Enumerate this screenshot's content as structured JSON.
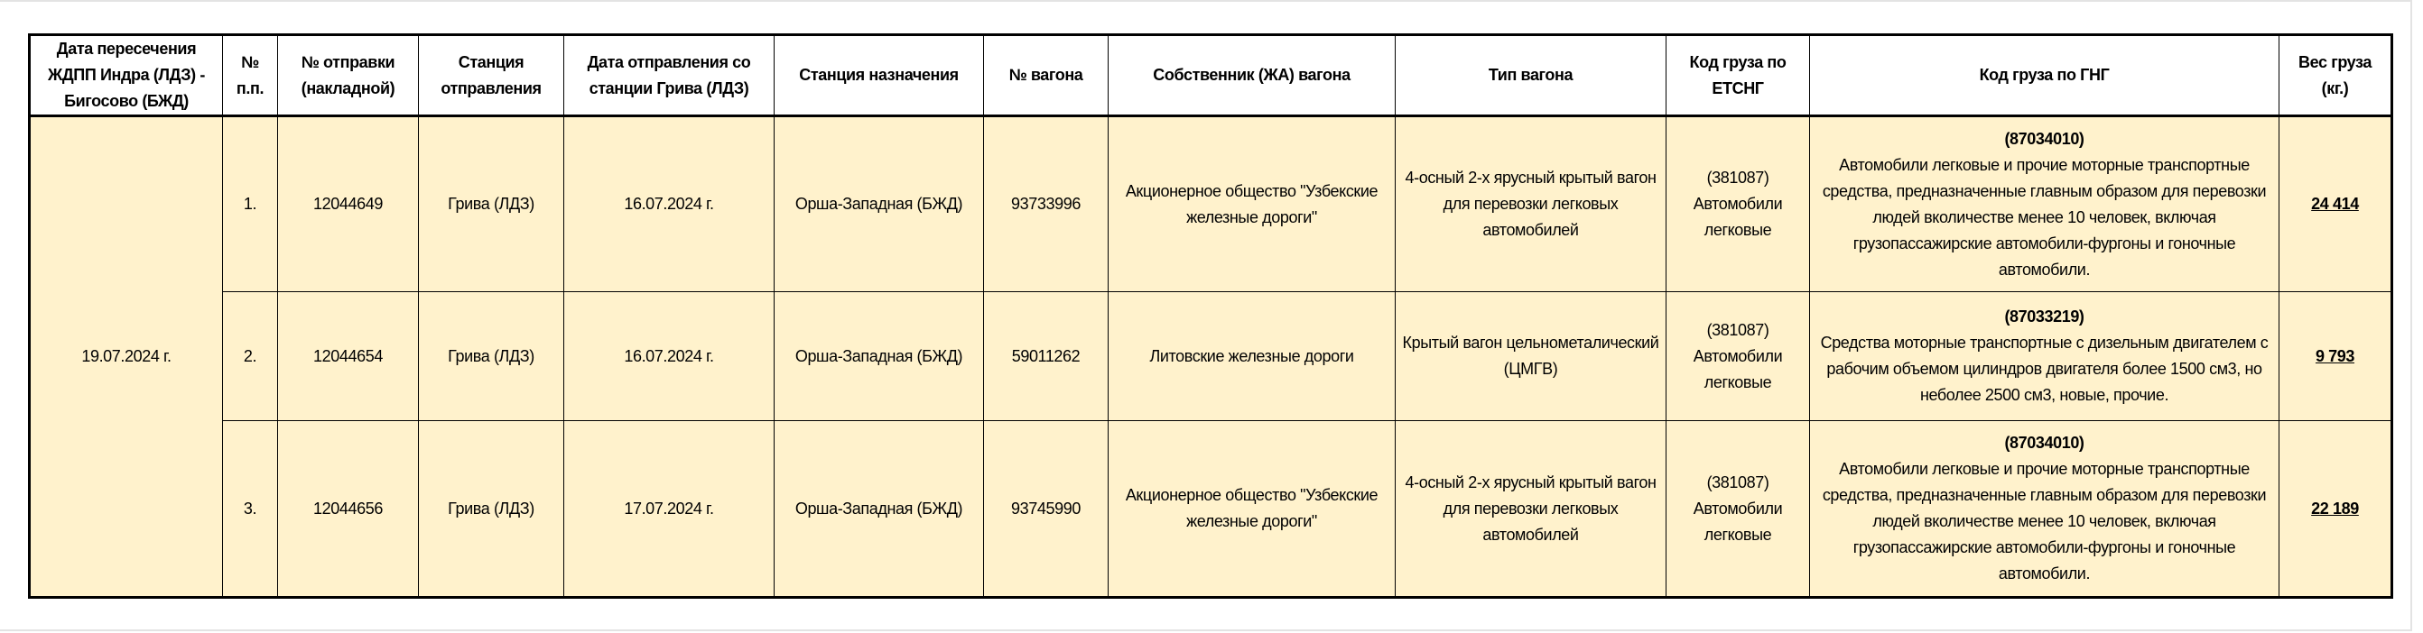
{
  "headers": [
    "Дата пересечения ЖДПП Индра (ЛДЗ) - Бигосово (БЖД)",
    "№ п.п.",
    "№ отправки (накладной)",
    "Станция отправления",
    "Дата отправления со станции Грива (ЛДЗ)",
    "Станция назначения",
    "№ вагона",
    "Собственник (ЖА) вагона",
    "Тип вагона",
    "Код груза по ЕТСНГ",
    "Код груза по ГНГ",
    "Вес груза (кг.)"
  ],
  "crossing_date": "19.07.2024 г.",
  "rows": [
    {
      "num": "1.",
      "waybill": "12044649",
      "from": "Грива (ЛДЗ)",
      "dep_date": "16.07.2024 г.",
      "to": "Орша-Западная (БЖД)",
      "wagon": "93733996",
      "owner": "Акционерное общество \"Узбекские железные дороги\"",
      "type": "4-осный 2-х ярусный крытый вагон для перевозки легковых автомобилей",
      "etsng_code": "(381087)",
      "etsng_name": "Автомобили легковые",
      "gng_code": "(87034010)",
      "gng_desc": "Автомобили легковые и прочие моторные транспортные средства, предназначенные главным образом для перевозки людей вколичестве менее 10 человек, включая грузопассажирские автомобили-фургоны и гоночные автомобили.",
      "weight": "24 414"
    },
    {
      "num": "2.",
      "waybill": "12044654",
      "from": "Грива (ЛДЗ)",
      "dep_date": "16.07.2024 г.",
      "to": "Орша-Западная (БЖД)",
      "wagon": "59011262",
      "owner": "Литовские железные дороги",
      "type": "Крытый вагон цельнометалический (ЦМГВ)",
      "etsng_code": "(381087)",
      "etsng_name": "Автомобили легковые",
      "gng_code": "(87033219)",
      "gng_desc": "Средства моторные транспортные с дизельным двигателем с рабочим объемом цилиндров двигателя более 1500 см3, но неболее 2500 см3, новые, прочие.",
      "weight": "9 793"
    },
    {
      "num": "3.",
      "waybill": "12044656",
      "from": "Грива (ЛДЗ)",
      "dep_date": "17.07.2024 г.",
      "to": "Орша-Западная (БЖД)",
      "wagon": "93745990",
      "owner": "Акционерное общество \"Узбекские железные дороги\"",
      "type": "4-осный 2-х ярусный крытый вагон для перевозки легковых автомобилей",
      "etsng_code": "(381087)",
      "etsng_name": "Автомобили легковые",
      "gng_code": "(87034010)",
      "gng_desc": "Автомобили легковые и прочие моторные транспортные средства, предназначенные главным образом для перевозки людей вколичестве менее 10 человек, включая грузопассажирские автомобили-фургоны и гоночные автомобили.",
      "weight": "22 189"
    }
  ],
  "colors": {
    "row_fill": "#fff2cc",
    "header_fill": "#ffffff",
    "border": "#000000"
  }
}
